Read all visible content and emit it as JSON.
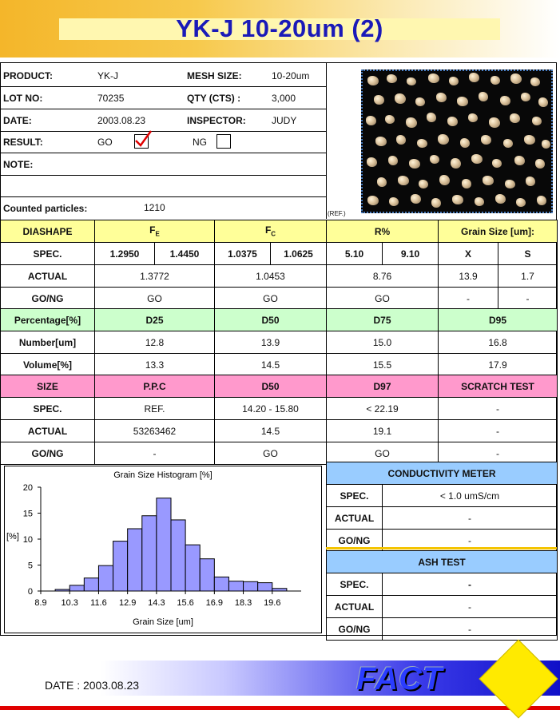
{
  "title": "YK-J 10-20um (2)",
  "info": {
    "product_label": "PRODUCT:",
    "product": "YK-J",
    "mesh_label": "MESH SIZE:",
    "mesh": "10-20um",
    "lot_label": "LOT NO:",
    "lot": "70235",
    "qty_label": "QTY (CTS) :",
    "qty": "3,000",
    "date_label": "DATE:",
    "date": "2003.08.23",
    "inspector_label": "INSPECTOR:",
    "inspector": "JUDY",
    "result_label": "RESULT:",
    "go": "GO",
    "ng": "NG",
    "result_checked": "GO",
    "note_label": "NOTE:",
    "counted_label": "Counted particles:",
    "counted": "1210",
    "ref_caption": "(REF.)"
  },
  "table1": {
    "headers": [
      "DIASHAPE",
      "F",
      "F",
      "R%",
      "Grain Size [um]:"
    ],
    "subscripts": [
      "E",
      "C"
    ],
    "spec_label": "SPEC.",
    "spec": [
      "1.2950",
      "1.4450",
      "1.0375",
      "1.0625",
      "5.10",
      "9.10",
      "X",
      "S"
    ],
    "actual_label": "ACTUAL",
    "actual": [
      "1.3772",
      "1.0453",
      "8.76",
      "13.9",
      "1.7"
    ],
    "gong_label": "GO/NG",
    "gong": [
      "GO",
      "GO",
      "GO",
      "-",
      "-"
    ]
  },
  "table2": {
    "headers": [
      "Percentage[%]",
      "D25",
      "D50",
      "D75",
      "D95"
    ],
    "rows": [
      {
        "label": "Number[um]",
        "values": [
          "12.8",
          "13.9",
          "15.0",
          "16.8"
        ]
      },
      {
        "label": "Volume[%]",
        "values": [
          "13.3",
          "14.5",
          "15.5",
          "17.9"
        ]
      }
    ]
  },
  "table3": {
    "headers": [
      "SIZE",
      "P.P.C",
      "D50",
      "D97",
      "SCRATCH TEST"
    ],
    "rows": [
      {
        "label": "SPEC.",
        "values": [
          "REF.",
          "14.20 - 15.80",
          "< 22.19",
          "-"
        ]
      },
      {
        "label": "ACTUAL",
        "values": [
          "53263462",
          "14.5",
          "19.1",
          "-"
        ]
      },
      {
        "label": "GO/NG",
        "values": [
          "-",
          "GO",
          "GO",
          "-"
        ]
      }
    ]
  },
  "conductivity": {
    "header": "CONDUCTIVITY METER",
    "rows": [
      {
        "label": "SPEC.",
        "value": "< 1.0 umS/cm"
      },
      {
        "label": "ACTUAL",
        "value": "-"
      },
      {
        "label": "GO/NG",
        "value": "-"
      }
    ]
  },
  "ash": {
    "header": "ASH TEST",
    "rows": [
      {
        "label": "SPEC.",
        "value": "-"
      },
      {
        "label": "ACTUAL",
        "value": "-"
      },
      {
        "label": "GO/NG",
        "value": "-"
      }
    ]
  },
  "chart_data": {
    "type": "bar",
    "title": "Grain Size Histogram [%]",
    "xlabel": "Grain Size [um]",
    "ylabel": "[%]",
    "ylim": [
      0,
      20
    ],
    "yticks": [
      0,
      5,
      10,
      15,
      20
    ],
    "xtick_labels": [
      "8.9",
      "10.3",
      "11.6",
      "12.9",
      "14.3",
      "15.6",
      "16.9",
      "18.3",
      "19.6"
    ],
    "values": [
      0,
      0.3,
      1.1,
      2.5,
      4.9,
      9.6,
      12.0,
      14.5,
      17.9,
      13.7,
      8.9,
      6.2,
      2.7,
      1.9,
      1.8,
      1.6,
      0.5,
      0
    ],
    "bar_color": "#9999ff",
    "grid": false,
    "legend": "none"
  },
  "footer": {
    "date": "DATE : 2003.08.23",
    "logo_text": "FACT"
  }
}
